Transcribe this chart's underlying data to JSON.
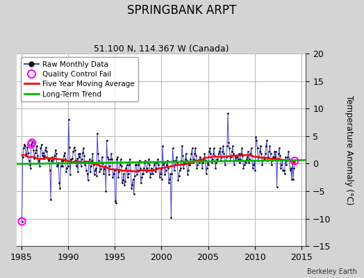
{
  "title": "SPRINGBANK ARPT",
  "subtitle": "51.100 N, 114.367 W (Canada)",
  "ylabel": "Temperature Anomaly (°C)",
  "credit": "Berkeley Earth",
  "xlim": [
    1984.5,
    2015.5
  ],
  "ylim": [
    -15,
    20
  ],
  "yticks": [
    -15,
    -10,
    -5,
    0,
    5,
    10,
    15,
    20
  ],
  "xticks": [
    1985,
    1990,
    1995,
    2000,
    2005,
    2010,
    2015
  ],
  "bg_color": "#d4d4d4",
  "plot_bg_color": "#ffffff",
  "raw_line_color": "#4444cc",
  "raw_dot_color": "#111111",
  "ma_color": "#ff0000",
  "trend_color": "#00bb00",
  "qc_color": "#ff00ff",
  "grid_color": "#bbbbbb",
  "raw_data": [
    [
      1985.042,
      -10.5
    ],
    [
      1985.125,
      1.2
    ],
    [
      1985.208,
      2.8
    ],
    [
      1985.292,
      3.5
    ],
    [
      1985.375,
      3.2
    ],
    [
      1985.458,
      1.5
    ],
    [
      1985.542,
      1.8
    ],
    [
      1985.625,
      3.0
    ],
    [
      1985.708,
      2.0
    ],
    [
      1985.792,
      0.5
    ],
    [
      1985.875,
      -0.2
    ],
    [
      1985.958,
      -0.8
    ],
    [
      1986.042,
      3.5
    ],
    [
      1986.125,
      3.8
    ],
    [
      1986.208,
      4.0
    ],
    [
      1986.292,
      2.5
    ],
    [
      1986.375,
      1.0
    ],
    [
      1986.458,
      2.0
    ],
    [
      1986.542,
      2.5
    ],
    [
      1986.625,
      3.2
    ],
    [
      1986.708,
      1.5
    ],
    [
      1986.792,
      0.0
    ],
    [
      1986.875,
      0.5
    ],
    [
      1986.958,
      -0.5
    ],
    [
      1987.042,
      2.8
    ],
    [
      1987.125,
      3.5
    ],
    [
      1987.208,
      1.5
    ],
    [
      1987.292,
      2.0
    ],
    [
      1987.375,
      1.2
    ],
    [
      1987.458,
      1.5
    ],
    [
      1987.542,
      2.5
    ],
    [
      1987.625,
      3.0
    ],
    [
      1987.708,
      2.2
    ],
    [
      1987.792,
      1.0
    ],
    [
      1987.875,
      0.5
    ],
    [
      1987.958,
      0.8
    ],
    [
      1988.042,
      -1.2
    ],
    [
      1988.125,
      -6.5
    ],
    [
      1988.208,
      0.5
    ],
    [
      1988.292,
      1.2
    ],
    [
      1988.375,
      0.2
    ],
    [
      1988.458,
      0.8
    ],
    [
      1988.542,
      1.5
    ],
    [
      1988.625,
      2.5
    ],
    [
      1988.708,
      1.8
    ],
    [
      1988.792,
      -0.5
    ],
    [
      1988.875,
      -0.2
    ],
    [
      1988.958,
      0.2
    ],
    [
      1989.042,
      -3.5
    ],
    [
      1989.125,
      -4.5
    ],
    [
      1989.208,
      -0.5
    ],
    [
      1989.292,
      0.5
    ],
    [
      1989.375,
      -0.5
    ],
    [
      1989.458,
      0.5
    ],
    [
      1989.542,
      1.5
    ],
    [
      1989.625,
      2.0
    ],
    [
      1989.708,
      0.8
    ],
    [
      1989.792,
      -1.5
    ],
    [
      1989.875,
      -0.8
    ],
    [
      1989.958,
      -0.5
    ],
    [
      1990.042,
      8.0
    ],
    [
      1990.125,
      3.0
    ],
    [
      1990.208,
      -2.0
    ],
    [
      1990.292,
      0.8
    ],
    [
      1990.375,
      0.2
    ],
    [
      1990.458,
      1.0
    ],
    [
      1990.542,
      2.2
    ],
    [
      1990.625,
      3.0
    ],
    [
      1990.708,
      2.5
    ],
    [
      1990.792,
      0.5
    ],
    [
      1990.875,
      -0.5
    ],
    [
      1990.958,
      1.0
    ],
    [
      1991.042,
      -1.5
    ],
    [
      1991.125,
      1.8
    ],
    [
      1991.208,
      1.2
    ],
    [
      1991.292,
      1.8
    ],
    [
      1991.375,
      -0.5
    ],
    [
      1991.458,
      0.8
    ],
    [
      1991.542,
      2.0
    ],
    [
      1991.625,
      2.8
    ],
    [
      1991.708,
      1.5
    ],
    [
      1991.792,
      -0.2
    ],
    [
      1991.875,
      0.2
    ],
    [
      1991.958,
      -1.2
    ],
    [
      1992.042,
      -1.8
    ],
    [
      1992.125,
      -3.0
    ],
    [
      1992.208,
      0.2
    ],
    [
      1992.292,
      0.8
    ],
    [
      1992.375,
      -1.5
    ],
    [
      1992.458,
      -0.5
    ],
    [
      1992.542,
      0.5
    ],
    [
      1992.625,
      1.8
    ],
    [
      1992.708,
      -0.2
    ],
    [
      1992.792,
      -2.0
    ],
    [
      1992.875,
      -1.2
    ],
    [
      1992.958,
      -0.8
    ],
    [
      1993.042,
      -2.2
    ],
    [
      1993.125,
      5.5
    ],
    [
      1993.208,
      1.8
    ],
    [
      1993.292,
      0.5
    ],
    [
      1993.375,
      -1.5
    ],
    [
      1993.458,
      -1.0
    ],
    [
      1993.542,
      0.2
    ],
    [
      1993.625,
      1.2
    ],
    [
      1993.708,
      0.0
    ],
    [
      1993.792,
      -1.8
    ],
    [
      1993.875,
      -1.0
    ],
    [
      1993.958,
      -0.5
    ],
    [
      1994.042,
      -5.0
    ],
    [
      1994.125,
      4.2
    ],
    [
      1994.208,
      1.2
    ],
    [
      1994.292,
      0.8
    ],
    [
      1994.375,
      -2.0
    ],
    [
      1994.458,
      -0.5
    ],
    [
      1994.542,
      0.8
    ],
    [
      1994.625,
      1.8
    ],
    [
      1994.708,
      0.8
    ],
    [
      1994.792,
      -2.5
    ],
    [
      1994.875,
      -1.8
    ],
    [
      1994.958,
      -1.2
    ],
    [
      1995.042,
      -6.8
    ],
    [
      1995.125,
      -7.2
    ],
    [
      1995.208,
      0.8
    ],
    [
      1995.292,
      1.2
    ],
    [
      1995.375,
      -2.5
    ],
    [
      1995.458,
      -1.5
    ],
    [
      1995.542,
      -0.2
    ],
    [
      1995.625,
      0.8
    ],
    [
      1995.708,
      -0.5
    ],
    [
      1995.792,
      -3.5
    ],
    [
      1995.875,
      -3.0
    ],
    [
      1995.958,
      -1.8
    ],
    [
      1996.042,
      -3.8
    ],
    [
      1996.125,
      -3.2
    ],
    [
      1996.208,
      -0.8
    ],
    [
      1996.292,
      -0.2
    ],
    [
      1996.375,
      -2.5
    ],
    [
      1996.458,
      -1.8
    ],
    [
      1996.542,
      -0.2
    ],
    [
      1996.625,
      0.8
    ],
    [
      1996.708,
      -1.2
    ],
    [
      1996.792,
      -4.5
    ],
    [
      1996.875,
      -3.8
    ],
    [
      1996.958,
      -2.8
    ],
    [
      1997.042,
      -5.5
    ],
    [
      1997.125,
      -2.2
    ],
    [
      1997.208,
      -0.2
    ],
    [
      1997.292,
      -0.2
    ],
    [
      1997.375,
      -2.0
    ],
    [
      1997.458,
      -1.2
    ],
    [
      1997.542,
      -0.2
    ],
    [
      1997.625,
      0.5
    ],
    [
      1997.708,
      -0.8
    ],
    [
      1997.792,
      -3.5
    ],
    [
      1997.875,
      -2.5
    ],
    [
      1997.958,
      -1.8
    ],
    [
      1998.042,
      -1.8
    ],
    [
      1998.125,
      -0.8
    ],
    [
      1998.208,
      0.2
    ],
    [
      1998.292,
      0.5
    ],
    [
      1998.375,
      -1.5
    ],
    [
      1998.458,
      -0.8
    ],
    [
      1998.542,
      0.2
    ],
    [
      1998.625,
      0.8
    ],
    [
      1998.708,
      -0.2
    ],
    [
      1998.792,
      -2.5
    ],
    [
      1998.875,
      -1.8
    ],
    [
      1998.958,
      -0.8
    ],
    [
      1999.042,
      -1.8
    ],
    [
      1999.125,
      -1.2
    ],
    [
      1999.208,
      -0.2
    ],
    [
      1999.292,
      0.2
    ],
    [
      1999.375,
      -1.5
    ],
    [
      1999.458,
      -0.8
    ],
    [
      1999.542,
      0.2
    ],
    [
      1999.625,
      0.8
    ],
    [
      1999.708,
      -0.2
    ],
    [
      1999.792,
      -2.5
    ],
    [
      1999.875,
      -1.8
    ],
    [
      1999.958,
      -0.8
    ],
    [
      2000.042,
      -2.8
    ],
    [
      2000.125,
      3.2
    ],
    [
      2000.208,
      -0.2
    ],
    [
      2000.292,
      0.2
    ],
    [
      2000.375,
      -2.0
    ],
    [
      2000.458,
      -1.2
    ],
    [
      2000.542,
      -0.2
    ],
    [
      2000.625,
      0.5
    ],
    [
      2000.708,
      -0.8
    ],
    [
      2000.792,
      -3.5
    ],
    [
      2000.875,
      -2.8
    ],
    [
      2000.958,
      -1.8
    ],
    [
      2001.042,
      -9.8
    ],
    [
      2001.125,
      -1.8
    ],
    [
      2001.208,
      2.8
    ],
    [
      2001.292,
      0.5
    ],
    [
      2001.375,
      -1.2
    ],
    [
      2001.458,
      -0.2
    ],
    [
      2001.542,
      0.5
    ],
    [
      2001.625,
      1.2
    ],
    [
      2001.708,
      0.2
    ],
    [
      2001.792,
      -3.0
    ],
    [
      2001.875,
      -2.2
    ],
    [
      2001.958,
      -1.2
    ],
    [
      2002.042,
      -0.8
    ],
    [
      2002.125,
      0.5
    ],
    [
      2002.208,
      3.2
    ],
    [
      2002.292,
      1.5
    ],
    [
      2002.375,
      -0.8
    ],
    [
      2002.458,
      0.2
    ],
    [
      2002.542,
      0.8
    ],
    [
      2002.625,
      1.8
    ],
    [
      2002.708,
      0.5
    ],
    [
      2002.792,
      -2.0
    ],
    [
      2002.875,
      -1.2
    ],
    [
      2002.958,
      -0.2
    ],
    [
      2003.042,
      -0.2
    ],
    [
      2003.125,
      0.8
    ],
    [
      2003.208,
      1.8
    ],
    [
      2003.292,
      2.8
    ],
    [
      2003.375,
      0.2
    ],
    [
      2003.458,
      0.8
    ],
    [
      2003.542,
      1.8
    ],
    [
      2003.625,
      2.8
    ],
    [
      2003.708,
      1.5
    ],
    [
      2003.792,
      -0.8
    ],
    [
      2003.875,
      -0.2
    ],
    [
      2003.958,
      0.5
    ],
    [
      2004.042,
      0.2
    ],
    [
      2004.125,
      1.2
    ],
    [
      2004.208,
      0.5
    ],
    [
      2004.292,
      0.8
    ],
    [
      2004.375,
      -0.8
    ],
    [
      2004.458,
      0.2
    ],
    [
      2004.542,
      0.8
    ],
    [
      2004.625,
      1.8
    ],
    [
      2004.708,
      0.5
    ],
    [
      2004.792,
      -1.8
    ],
    [
      2004.875,
      -0.8
    ],
    [
      2004.958,
      0.2
    ],
    [
      2005.042,
      -0.2
    ],
    [
      2005.125,
      2.2
    ],
    [
      2005.208,
      2.8
    ],
    [
      2005.292,
      1.8
    ],
    [
      2005.375,
      0.2
    ],
    [
      2005.458,
      0.8
    ],
    [
      2005.542,
      1.8
    ],
    [
      2005.625,
      2.8
    ],
    [
      2005.708,
      1.5
    ],
    [
      2005.792,
      -0.8
    ],
    [
      2005.875,
      0.2
    ],
    [
      2005.958,
      0.8
    ],
    [
      2006.042,
      0.8
    ],
    [
      2006.125,
      1.8
    ],
    [
      2006.208,
      2.2
    ],
    [
      2006.292,
      2.8
    ],
    [
      2006.375,
      0.5
    ],
    [
      2006.458,
      1.2
    ],
    [
      2006.542,
      2.2
    ],
    [
      2006.625,
      3.2
    ],
    [
      2006.708,
      1.8
    ],
    [
      2006.792,
      -0.2
    ],
    [
      2006.875,
      0.5
    ],
    [
      2006.958,
      1.2
    ],
    [
      2007.042,
      3.2
    ],
    [
      2007.125,
      9.2
    ],
    [
      2007.208,
      3.8
    ],
    [
      2007.292,
      2.8
    ],
    [
      2007.375,
      0.5
    ],
    [
      2007.458,
      1.2
    ],
    [
      2007.542,
      2.2
    ],
    [
      2007.625,
      3.2
    ],
    [
      2007.708,
      1.8
    ],
    [
      2007.792,
      -0.2
    ],
    [
      2007.875,
      0.5
    ],
    [
      2007.958,
      1.2
    ],
    [
      2008.042,
      0.5
    ],
    [
      2008.125,
      1.2
    ],
    [
      2008.208,
      0.8
    ],
    [
      2008.292,
      1.8
    ],
    [
      2008.375,
      0.2
    ],
    [
      2008.458,
      0.8
    ],
    [
      2008.542,
      1.8
    ],
    [
      2008.625,
      2.8
    ],
    [
      2008.708,
      1.5
    ],
    [
      2008.792,
      -0.8
    ],
    [
      2008.875,
      -0.2
    ],
    [
      2008.958,
      0.5
    ],
    [
      2009.042,
      0.2
    ],
    [
      2009.125,
      0.8
    ],
    [
      2009.208,
      1.2
    ],
    [
      2009.292,
      2.2
    ],
    [
      2009.375,
      0.2
    ],
    [
      2009.458,
      0.8
    ],
    [
      2009.542,
      1.8
    ],
    [
      2009.625,
      2.8
    ],
    [
      2009.708,
      1.5
    ],
    [
      2009.792,
      -0.8
    ],
    [
      2009.875,
      -0.2
    ],
    [
      2009.958,
      0.5
    ],
    [
      2010.042,
      -1.2
    ],
    [
      2010.125,
      4.8
    ],
    [
      2010.208,
      4.2
    ],
    [
      2010.292,
      2.8
    ],
    [
      2010.375,
      0.5
    ],
    [
      2010.458,
      1.2
    ],
    [
      2010.542,
      2.2
    ],
    [
      2010.625,
      3.2
    ],
    [
      2010.708,
      1.8
    ],
    [
      2010.792,
      -0.2
    ],
    [
      2010.875,
      0.5
    ],
    [
      2010.958,
      1.2
    ],
    [
      2011.042,
      0.8
    ],
    [
      2011.125,
      1.8
    ],
    [
      2011.208,
      3.2
    ],
    [
      2011.292,
      4.2
    ],
    [
      2011.375,
      0.5
    ],
    [
      2011.458,
      1.2
    ],
    [
      2011.542,
      2.2
    ],
    [
      2011.625,
      3.2
    ],
    [
      2011.708,
      1.8
    ],
    [
      2011.792,
      -0.2
    ],
    [
      2011.875,
      0.5
    ],
    [
      2011.958,
      1.2
    ],
    [
      2012.042,
      1.2
    ],
    [
      2012.125,
      2.2
    ],
    [
      2012.208,
      1.2
    ],
    [
      2012.292,
      2.2
    ],
    [
      2012.375,
      -4.2
    ],
    [
      2012.458,
      0.8
    ],
    [
      2012.542,
      1.8
    ],
    [
      2012.625,
      2.8
    ],
    [
      2012.708,
      1.5
    ],
    [
      2012.792,
      -0.8
    ],
    [
      2012.875,
      -0.2
    ],
    [
      2012.958,
      0.5
    ],
    [
      2013.042,
      -1.2
    ],
    [
      2013.125,
      -1.2
    ],
    [
      2013.208,
      -1.8
    ],
    [
      2013.292,
      1.2
    ],
    [
      2013.375,
      -0.2
    ],
    [
      2013.458,
      0.5
    ],
    [
      2013.542,
      1.2
    ],
    [
      2013.625,
      2.2
    ],
    [
      2013.708,
      0.8
    ],
    [
      2013.792,
      -1.2
    ],
    [
      2013.875,
      -0.8
    ],
    [
      2013.958,
      -2.8
    ],
    [
      2014.042,
      0.5
    ],
    [
      2014.125,
      -2.8
    ],
    [
      2014.208,
      -0.8
    ],
    [
      2014.292,
      0.5
    ]
  ],
  "qc_fail_points": [
    [
      1985.042,
      -10.5
    ],
    [
      1986.042,
      3.5
    ],
    [
      1986.125,
      3.8
    ],
    [
      2014.292,
      0.5
    ]
  ],
  "legend_labels": [
    "Raw Monthly Data",
    "Quality Control Fail",
    "Five Year Moving Average",
    "Long-Term Trend"
  ]
}
